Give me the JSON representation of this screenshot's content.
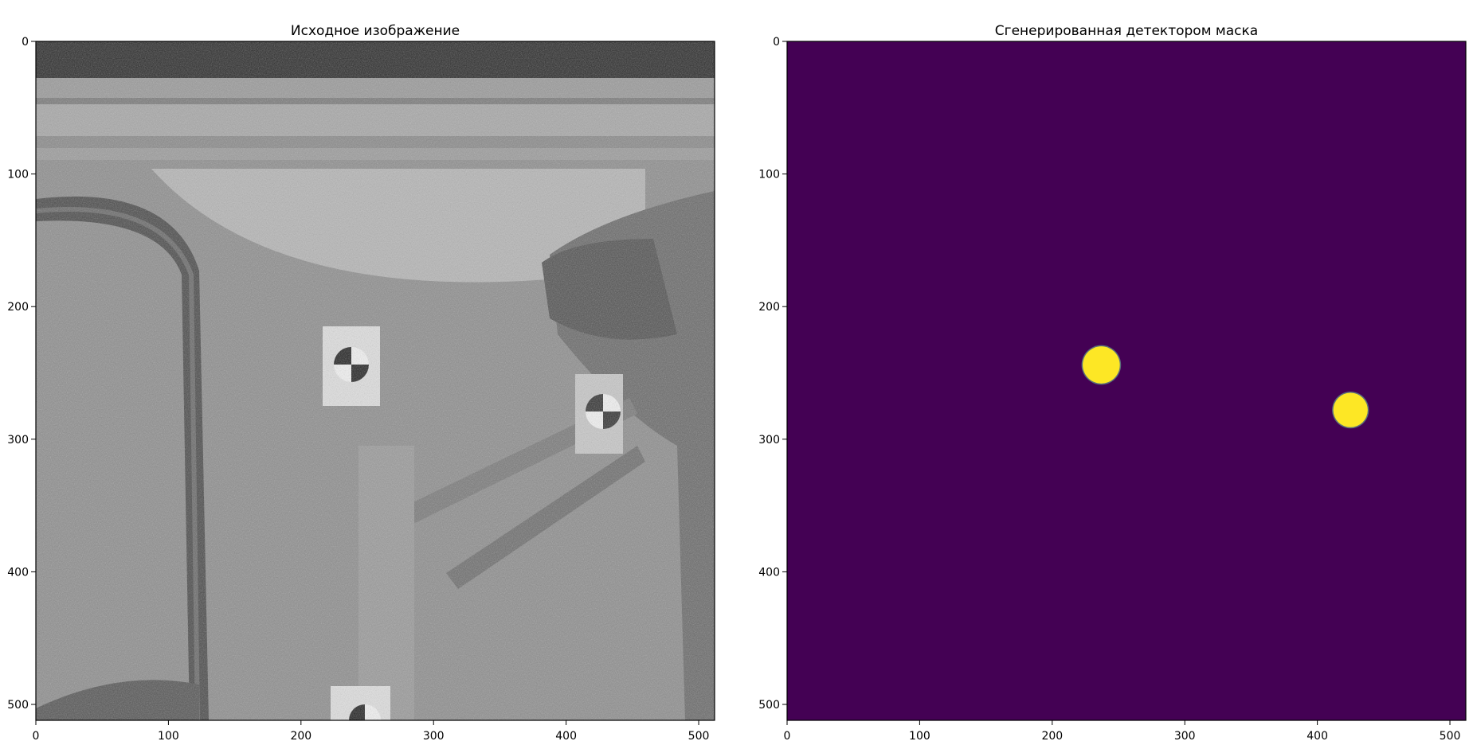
{
  "chart_data": [
    {
      "type": "image",
      "title": "Исходное изображение",
      "colormap": "gray",
      "xlim": [
        0,
        512
      ],
      "ylim": [
        512,
        0
      ],
      "xticks": [
        0,
        100,
        200,
        300,
        400,
        500
      ],
      "yticks": [
        0,
        100,
        200,
        300,
        400,
        500
      ],
      "markers": [
        {
          "label": "checkerboard-target",
          "x": 237,
          "y": 235
        },
        {
          "label": "checkerboard-target",
          "x": 428,
          "y": 278
        },
        {
          "label": "checkerboard-target",
          "x": 245,
          "y": 505
        }
      ]
    },
    {
      "type": "heatmap",
      "title": "Сгенерированная детектором маска",
      "colormap": "viridis",
      "background_color": "#440154",
      "foreground_color": "#fde725",
      "xlim": [
        0,
        512
      ],
      "ylim": [
        512,
        0
      ],
      "xticks": [
        0,
        100,
        200,
        300,
        400,
        500
      ],
      "yticks": [
        0,
        100,
        200,
        300,
        400,
        500
      ],
      "blobs": [
        {
          "x": 237,
          "y": 244,
          "r": 14
        },
        {
          "x": 425,
          "y": 278,
          "r": 13
        }
      ]
    }
  ]
}
